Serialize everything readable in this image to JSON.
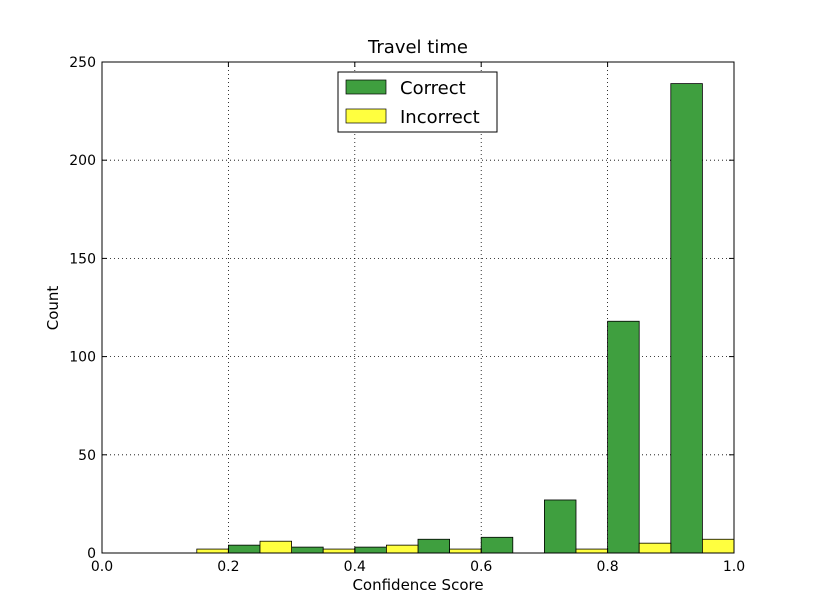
{
  "chart_data": {
    "type": "bar",
    "title": "Travel time",
    "xlabel": "Confidence Score",
    "ylabel": "Count",
    "xlim": [
      0.0,
      1.0
    ],
    "ylim": [
      0,
      250
    ],
    "xticks": [
      "0.0",
      "0.2",
      "0.4",
      "0.6",
      "0.8",
      "1.0"
    ],
    "yticks": [
      "0",
      "50",
      "100",
      "150",
      "200",
      "250"
    ],
    "grid": true,
    "legend_position": "top-center",
    "bin_edges": [
      0.0,
      0.1,
      0.2,
      0.3,
      0.4,
      0.5,
      0.6,
      0.7,
      0.8,
      0.9,
      1.0
    ],
    "series": [
      {
        "name": "Correct",
        "color": "#3f9f3f",
        "values": [
          0,
          0,
          4,
          3,
          3,
          7,
          8,
          27,
          118,
          239
        ]
      },
      {
        "name": "Incorrect",
        "color": "#ffff3f",
        "values": [
          0,
          2,
          6,
          2,
          4,
          2,
          0,
          2,
          5,
          7
        ]
      }
    ]
  }
}
